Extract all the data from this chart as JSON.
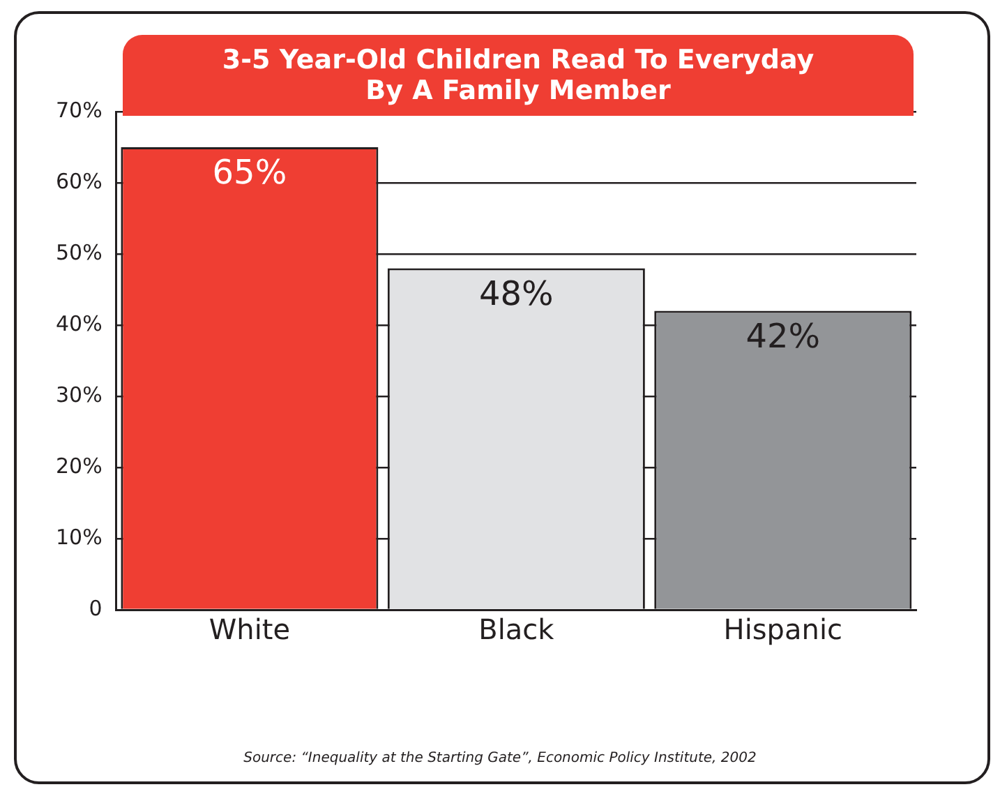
{
  "chart_data": {
    "type": "bar",
    "title": "3-5 Year-Old Children Read To Everyday\nBy A Family Member",
    "categories": [
      "White",
      "Black",
      "Hispanic"
    ],
    "values": [
      65,
      48,
      42
    ],
    "colors": [
      "#ef3e33",
      "#e1e2e4",
      "#939598"
    ],
    "value_labels": [
      "65%",
      "48%",
      "42%"
    ],
    "ylim": [
      0,
      70
    ],
    "yticks": [
      {
        "value": 0,
        "label": "0"
      },
      {
        "value": 10,
        "label": "10%"
      },
      {
        "value": 20,
        "label": "20%"
      },
      {
        "value": 30,
        "label": "30%"
      },
      {
        "value": 40,
        "label": "40%"
      },
      {
        "value": 50,
        "label": "50%"
      },
      {
        "value": 60,
        "label": "60%"
      },
      {
        "value": 70,
        "label": "70%"
      }
    ],
    "grid": "y",
    "legend": false,
    "annotations": [
      "Source:  “Inequality at the Starting Gate”, Economic Policy Institute, 2002"
    ]
  }
}
